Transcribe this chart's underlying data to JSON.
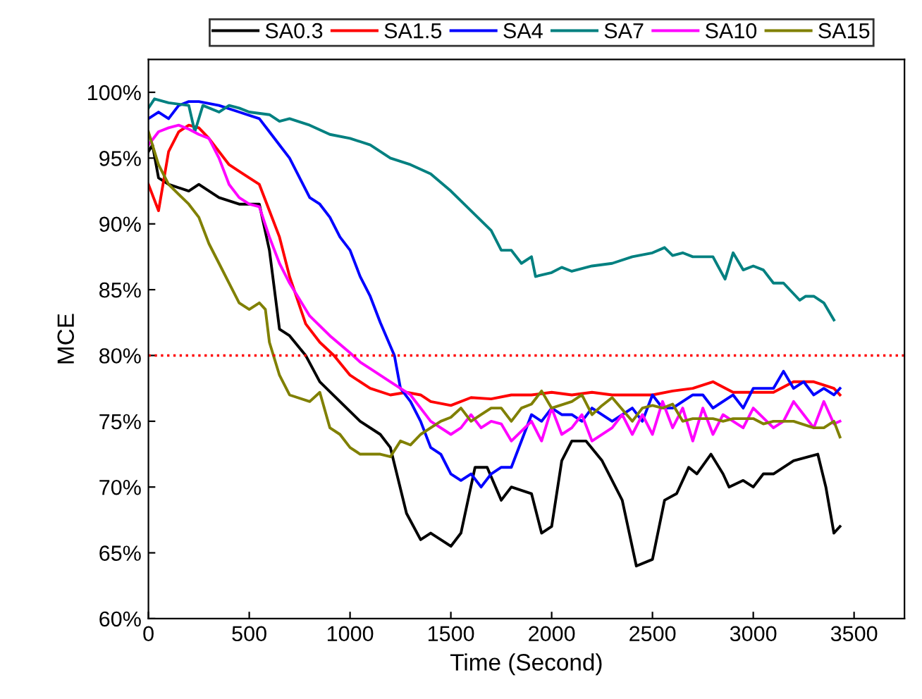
{
  "chart_data": {
    "type": "line",
    "xlabel": "Time (Second)",
    "ylabel": "MCE",
    "xlim": [
      0,
      3750
    ],
    "xticks": [
      0,
      500,
      1000,
      1500,
      2000,
      2500,
      3000,
      3500
    ],
    "ylim": [
      60,
      102.5
    ],
    "yticks": [
      {
        "value": 60,
        "label": "60%"
      },
      {
        "value": 65,
        "label": "65%"
      },
      {
        "value": 70,
        "label": "70%"
      },
      {
        "value": 75,
        "label": "75%"
      },
      {
        "value": 80,
        "label": "80%"
      },
      {
        "value": 85,
        "label": "85%"
      },
      {
        "value": 90,
        "label": "90%"
      },
      {
        "value": 95,
        "label": "95%"
      },
      {
        "value": 100,
        "label": "100%"
      }
    ],
    "grid": false,
    "legend": "top",
    "marker": "none",
    "line_style": "solid",
    "ref_lines": [
      {
        "axis": "y",
        "value": 80,
        "label": null,
        "color": "#ff0000",
        "line_style": "dotted"
      }
    ],
    "series": [
      {
        "name": "SA0.3",
        "color": "#000000",
        "x": [
          0,
          20,
          50,
          100,
          200,
          250,
          350,
          450,
          550,
          600,
          650,
          700,
          780,
          850,
          950,
          1050,
          1150,
          1200,
          1280,
          1350,
          1400,
          1500,
          1550,
          1620,
          1680,
          1750,
          1800,
          1900,
          1950,
          2000,
          2050,
          2100,
          2170,
          2250,
          2350,
          2420,
          2500,
          2560,
          2620,
          2680,
          2720,
          2790,
          2850,
          2880,
          2950,
          3000,
          3050,
          3100,
          3200,
          3320,
          3360,
          3400,
          3430
        ],
        "values": [
          95.5,
          96,
          93.5,
          93,
          92.5,
          93,
          92,
          91.5,
          91.5,
          88,
          82,
          81.5,
          80,
          78,
          76.5,
          75,
          74,
          73,
          68,
          66,
          66.5,
          65.5,
          66.5,
          71.5,
          71.5,
          69,
          70,
          69.5,
          66.5,
          67,
          72,
          73.5,
          73.5,
          72,
          69,
          64,
          64.5,
          69,
          69.5,
          71.5,
          71,
          72.5,
          71,
          70,
          70.5,
          70,
          71,
          71,
          72,
          72.5,
          70,
          66.5,
          67
        ]
      },
      {
        "name": "SA1.5",
        "color": "#ff0000",
        "x": [
          0,
          50,
          100,
          150,
          200,
          250,
          300,
          400,
          450,
          550,
          600,
          650,
          700,
          780,
          850,
          920,
          1000,
          1100,
          1200,
          1280,
          1350,
          1400,
          1500,
          1600,
          1700,
          1800,
          1900,
          2000,
          2100,
          2200,
          2300,
          2400,
          2500,
          2600,
          2700,
          2800,
          2900,
          3000,
          3100,
          3200,
          3300,
          3400,
          3430
        ],
        "values": [
          93,
          91,
          95.5,
          97,
          97.5,
          97.3,
          96.5,
          94.5,
          94,
          93,
          91,
          89,
          86,
          82.4,
          81,
          80,
          78.5,
          77.5,
          77,
          77.2,
          77,
          76.5,
          76.2,
          76.8,
          76.7,
          77,
          77,
          77.2,
          77,
          77.2,
          77,
          77,
          77,
          77.3,
          77.5,
          78,
          77.2,
          77.2,
          77.2,
          78,
          78,
          77.5,
          77
        ]
      },
      {
        "name": "SA4",
        "color": "#0000ff",
        "x": [
          0,
          50,
          100,
          150,
          200,
          250,
          350,
          450,
          550,
          600,
          650,
          700,
          750,
          800,
          850,
          900,
          950,
          1000,
          1050,
          1100,
          1150,
          1220,
          1250,
          1300,
          1350,
          1400,
          1450,
          1500,
          1550,
          1600,
          1650,
          1700,
          1750,
          1800,
          1900,
          1950,
          2000,
          2050,
          2100,
          2150,
          2200,
          2300,
          2400,
          2450,
          2500,
          2550,
          2600,
          2700,
          2750,
          2800,
          2900,
          2950,
          3000,
          3100,
          3150,
          3200,
          3250,
          3300,
          3350,
          3400,
          3430
        ],
        "values": [
          98,
          98.5,
          98,
          99,
          99.3,
          99.3,
          99,
          98.5,
          98,
          97,
          96,
          95,
          93.5,
          92,
          91.5,
          90.5,
          89,
          88,
          86,
          84.5,
          82.5,
          80,
          77.5,
          76.5,
          75,
          73,
          72.5,
          71,
          70.5,
          71,
          70,
          71,
          71.5,
          71.5,
          75.5,
          75,
          76,
          75.5,
          75.5,
          75,
          76,
          75,
          76,
          75,
          77,
          76,
          76,
          77,
          77,
          76,
          77,
          76,
          77.5,
          77.5,
          78.8,
          77.5,
          78,
          77,
          77.5,
          77,
          77.5
        ]
      },
      {
        "name": "SA7",
        "color": "#008080",
        "x": [
          0,
          30,
          100,
          200,
          230,
          270,
          350,
          400,
          450,
          500,
          600,
          650,
          700,
          800,
          900,
          1000,
          1100,
          1200,
          1300,
          1400,
          1500,
          1600,
          1700,
          1750,
          1800,
          1850,
          1900,
          1920,
          2000,
          2050,
          2100,
          2200,
          2300,
          2400,
          2500,
          2560,
          2600,
          2650,
          2700,
          2800,
          2860,
          2900,
          2950,
          3000,
          3050,
          3100,
          3150,
          3230,
          3260,
          3300,
          3350,
          3400
        ],
        "values": [
          98.8,
          99.5,
          99.2,
          99,
          97,
          99,
          98.5,
          99,
          98.8,
          98.5,
          98.3,
          97.8,
          98,
          97.5,
          96.8,
          96.5,
          96,
          95,
          94.5,
          93.8,
          92.5,
          91,
          89.5,
          88,
          88,
          87,
          87.5,
          86,
          86.3,
          86.7,
          86.4,
          86.8,
          87,
          87.5,
          87.8,
          88.2,
          87.6,
          87.8,
          87.5,
          87.5,
          85.8,
          87.8,
          86.5,
          86.8,
          86.5,
          85.5,
          85.5,
          84.2,
          84.5,
          84.5,
          84,
          82.7
        ]
      },
      {
        "name": "SA10",
        "color": "#ff00ff",
        "x": [
          0,
          50,
          100,
          150,
          200,
          250,
          300,
          350,
          400,
          450,
          500,
          550,
          600,
          650,
          700,
          800,
          900,
          1000,
          1050,
          1100,
          1200,
          1300,
          1400,
          1500,
          1550,
          1600,
          1650,
          1700,
          1750,
          1800,
          1900,
          1950,
          2000,
          2050,
          2100,
          2150,
          2200,
          2300,
          2350,
          2400,
          2450,
          2500,
          2550,
          2600,
          2650,
          2700,
          2750,
          2800,
          2850,
          2900,
          2950,
          3000,
          3100,
          3150,
          3200,
          3250,
          3300,
          3350,
          3400,
          3430
        ],
        "values": [
          96,
          97,
          97.3,
          97.5,
          97.2,
          96.8,
          96.5,
          95,
          93,
          92,
          91.5,
          91.3,
          89,
          87,
          85.5,
          83,
          81.5,
          80.2,
          79.5,
          79,
          78,
          77,
          75,
          74,
          74.5,
          75.5,
          74.5,
          75,
          74.8,
          73.5,
          75,
          73.5,
          76,
          74,
          74.5,
          75.5,
          73.5,
          74.5,
          75.5,
          74,
          75.5,
          74,
          76.5,
          74.5,
          76,
          73.5,
          76,
          74,
          75.5,
          75,
          74.5,
          76,
          74.5,
          75,
          76.5,
          75.5,
          74.5,
          76.5,
          74.8,
          75
        ]
      },
      {
        "name": "SA15",
        "color": "#808000",
        "x": [
          0,
          50,
          100,
          200,
          250,
          300,
          350,
          400,
          450,
          500,
          550,
          580,
          600,
          650,
          700,
          800,
          850,
          900,
          950,
          1000,
          1050,
          1150,
          1200,
          1250,
          1300,
          1350,
          1400,
          1450,
          1500,
          1550,
          1600,
          1650,
          1700,
          1750,
          1800,
          1850,
          1900,
          1950,
          2000,
          2100,
          2150,
          2200,
          2250,
          2300,
          2400,
          2450,
          2500,
          2550,
          2600,
          2650,
          2700,
          2800,
          2850,
          2900,
          3000,
          3050,
          3100,
          3200,
          3300,
          3350,
          3400,
          3430
        ],
        "values": [
          97,
          94.5,
          93,
          91.5,
          90.5,
          88.5,
          87,
          85.5,
          84,
          83.5,
          84,
          83.5,
          81,
          78.5,
          77,
          76.5,
          77.2,
          74.5,
          74,
          73,
          72.5,
          72.5,
          72.3,
          73.5,
          73.2,
          74,
          74.5,
          75,
          75.3,
          76,
          75,
          75.5,
          76,
          76,
          75,
          76,
          76.3,
          77.3,
          76,
          76.5,
          77,
          75.5,
          76.2,
          76.8,
          75,
          76,
          76.2,
          76,
          76.3,
          75,
          75.2,
          75.2,
          75,
          75.2,
          75.2,
          74.8,
          75,
          75,
          74.5,
          74.5,
          75,
          73.8
        ]
      }
    ]
  }
}
